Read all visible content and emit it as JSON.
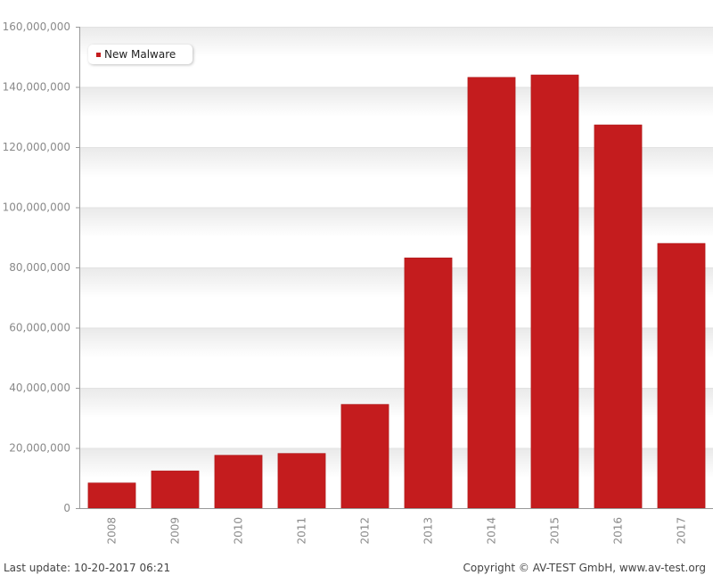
{
  "chart_data": {
    "type": "bar",
    "categories": [
      "2008",
      "2009",
      "2010",
      "2011",
      "2012",
      "2013",
      "2014",
      "2015",
      "2016",
      "2017"
    ],
    "series": [
      {
        "name": "New Malware",
        "values": [
          8400000,
          12400000,
          17600000,
          18200000,
          34500000,
          83200000,
          143200000,
          144000000,
          127400000,
          88000000
        ]
      }
    ],
    "ylim": [
      0,
      160000000
    ],
    "yticks": [
      0,
      20000000,
      40000000,
      60000000,
      80000000,
      100000000,
      120000000,
      140000000,
      160000000
    ],
    "ytick_labels": [
      "0",
      "20,000,000",
      "40,000,000",
      "60,000,000",
      "80,000,000",
      "100,000,000",
      "120,000,000",
      "140,000,000",
      "160,000,000"
    ],
    "xlabel": "",
    "ylabel": "",
    "legend": "top-left",
    "grid": true,
    "bar_color": "#c41c1e"
  },
  "footer": {
    "last_update": "Last update: 10-20-2017 06:21",
    "copyright": "Copyright © AV-TEST GmbH, www.av-test.org"
  }
}
